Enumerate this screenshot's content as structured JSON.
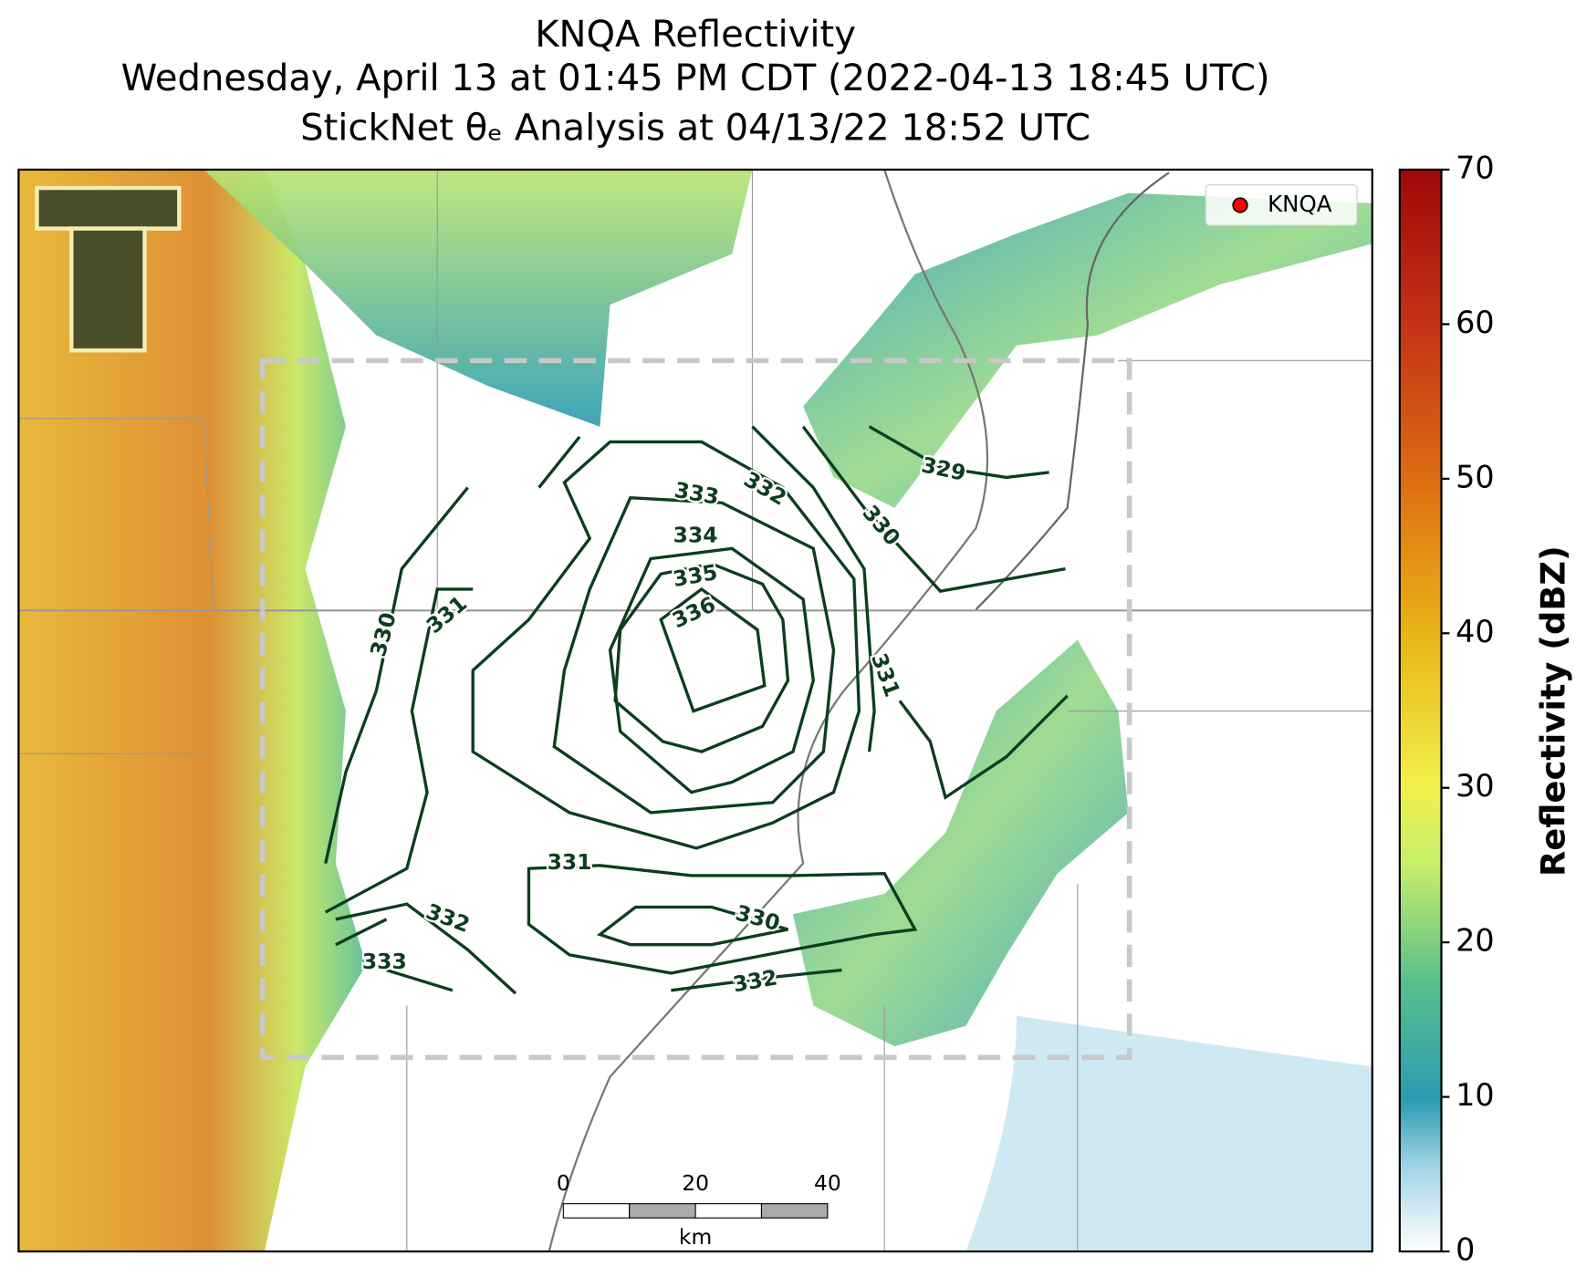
{
  "header": {
    "title": "KNQA Reflectivity",
    "lines": [
      "Wednesday, April 13 at 01:45 PM CDT (2022-04-13 18:45 UTC)",
      "StickNet θₑ Analysis at 04/13/22 18:52 UTC"
    ]
  },
  "legend": {
    "label": "KNQA",
    "color": "#ff0000"
  },
  "colorbar": {
    "label": "Reflectivity (dBZ)",
    "lim": [
      0,
      70
    ],
    "ticks": [
      0,
      10,
      20,
      30,
      40,
      50,
      60,
      70
    ]
  },
  "contour_labels": [
    333,
    332,
    329,
    330,
    334,
    335,
    336,
    331,
    330,
    331,
    331,
    332,
    330,
    333,
    332
  ],
  "scale_bar": {
    "ticks": [
      "0",
      "20",
      "40"
    ],
    "unit": "km"
  }
}
